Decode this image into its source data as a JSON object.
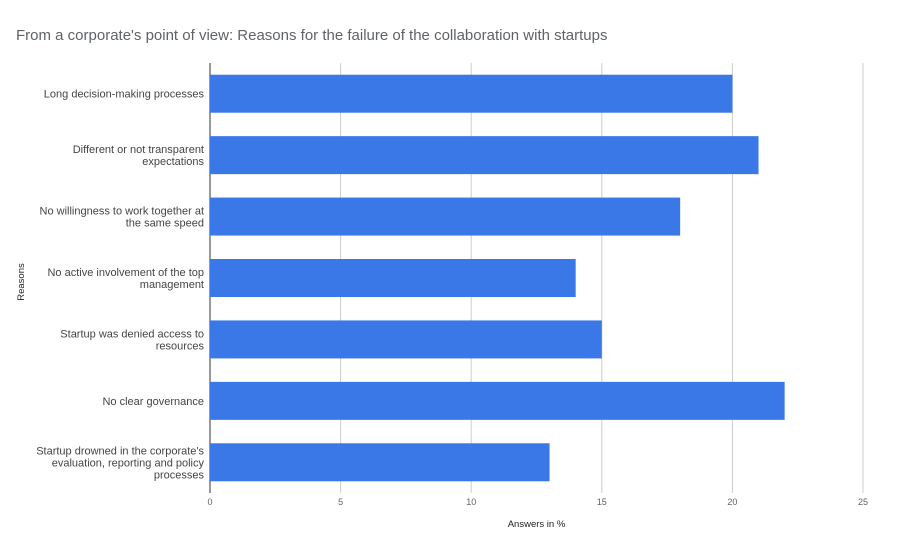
{
  "chart_data": {
    "type": "bar",
    "orientation": "horizontal",
    "title": "From a corporate's point of view: Reasons for the failure of the collaboration with startups",
    "xlabel": "Answers in %",
    "ylabel": "Reasons",
    "xlim": [
      0,
      25
    ],
    "xticks": [
      0,
      5,
      10,
      15,
      20,
      25
    ],
    "grid": true,
    "legend": "none",
    "bar_color": "#3b78e7",
    "categories": [
      [
        "Long decision-making processes"
      ],
      [
        "Different or not transparent",
        "expectations"
      ],
      [
        "No willingness to work together at",
        "the same speed"
      ],
      [
        "No active involvement of the top",
        "management"
      ],
      [
        "Startup was denied access to",
        "resources"
      ],
      [
        "No clear governance"
      ],
      [
        "Startup drowned in the corporate's",
        "evaluation, reporting and policy",
        "processes"
      ]
    ],
    "values": [
      20,
      21,
      18,
      14,
      15,
      22,
      13
    ]
  }
}
